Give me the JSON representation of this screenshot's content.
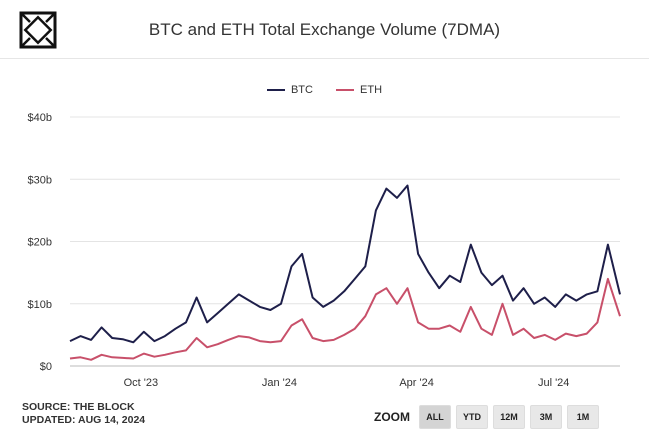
{
  "header": {
    "title": "BTC and ETH Total Exchange Volume (7DMA)"
  },
  "legend": [
    {
      "name": "BTC",
      "color": "#1e1f4a"
    },
    {
      "name": "ETH",
      "color": "#c8506a"
    }
  ],
  "footer": {
    "source": "SOURCE: THE BLOCK",
    "updated": "UPDATED: AUG 14, 2024"
  },
  "zoom": {
    "label": "ZOOM",
    "buttons": [
      "ALL",
      "YTD",
      "12M",
      "3M",
      "1M"
    ],
    "selected": "ALL"
  },
  "chart_data": {
    "type": "line",
    "title": "BTC and ETH Total Exchange Volume (7DMA)",
    "xlabel": "",
    "ylabel": "",
    "ylim": [
      0,
      40
    ],
    "y_ticks": [
      "$0",
      "$10b",
      "$20b",
      "$30b",
      "$40b"
    ],
    "x_ticks": [
      "Oct '23",
      "Jan '24",
      "Apr '24",
      "Jul '24"
    ],
    "x": [
      "2023-08-15",
      "2023-08-22",
      "2023-08-29",
      "2023-09-05",
      "2023-09-12",
      "2023-09-19",
      "2023-09-26",
      "2023-10-03",
      "2023-10-10",
      "2023-10-17",
      "2023-10-24",
      "2023-10-31",
      "2023-11-07",
      "2023-11-14",
      "2023-11-21",
      "2023-11-28",
      "2023-12-05",
      "2023-12-12",
      "2023-12-19",
      "2023-12-26",
      "2024-01-02",
      "2024-01-09",
      "2024-01-16",
      "2024-01-23",
      "2024-01-30",
      "2024-02-06",
      "2024-02-13",
      "2024-02-20",
      "2024-02-27",
      "2024-03-05",
      "2024-03-12",
      "2024-03-19",
      "2024-03-26",
      "2024-04-02",
      "2024-04-09",
      "2024-04-16",
      "2024-04-23",
      "2024-04-30",
      "2024-05-07",
      "2024-05-14",
      "2024-05-21",
      "2024-05-28",
      "2024-06-04",
      "2024-06-11",
      "2024-06-18",
      "2024-06-25",
      "2024-07-02",
      "2024-07-09",
      "2024-07-16",
      "2024-07-23",
      "2024-07-30",
      "2024-08-06",
      "2024-08-14"
    ],
    "series": [
      {
        "name": "BTC",
        "color": "#1e1f4a",
        "values": [
          4,
          4.8,
          4.2,
          6.2,
          4.5,
          4.3,
          3.8,
          5.5,
          4.0,
          4.8,
          6.0,
          7.0,
          11.0,
          7.0,
          8.5,
          10.0,
          11.5,
          10.5,
          9.5,
          9.0,
          10.0,
          16.0,
          18.0,
          11.0,
          9.5,
          10.5,
          12.0,
          14.0,
          16.0,
          25.0,
          28.5,
          27.0,
          29.0,
          18.0,
          15.0,
          12.5,
          14.5,
          13.5,
          19.5,
          15.0,
          13.0,
          14.5,
          10.5,
          12.5,
          10.0,
          11.0,
          9.5,
          11.5,
          10.5,
          11.5,
          12.0,
          19.5,
          11.5
        ]
      },
      {
        "name": "ETH",
        "color": "#c8506a",
        "values": [
          1.2,
          1.4,
          1.0,
          1.8,
          1.4,
          1.3,
          1.2,
          2.0,
          1.5,
          1.8,
          2.2,
          2.5,
          4.5,
          3.0,
          3.5,
          4.2,
          4.8,
          4.6,
          4.0,
          3.8,
          4.0,
          6.5,
          7.5,
          4.5,
          4.0,
          4.2,
          5.0,
          6.0,
          8.0,
          11.5,
          12.5,
          10.0,
          12.5,
          7.0,
          6.0,
          6.0,
          6.5,
          5.5,
          9.5,
          6.0,
          5.0,
          10.0,
          5.0,
          6.0,
          4.5,
          5.0,
          4.2,
          5.2,
          4.8,
          5.2,
          7.0,
          14.0,
          8.0
        ]
      }
    ],
    "grid": true,
    "legend_position": "top-center"
  }
}
